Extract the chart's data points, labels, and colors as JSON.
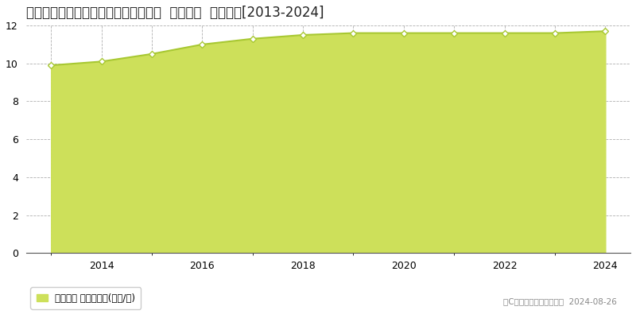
{
  "title": "福島県いわき市岩間町天神前２番６外  地価公示  地価推移[2013-2024]",
  "years": [
    2013,
    2014,
    2015,
    2016,
    2017,
    2018,
    2019,
    2020,
    2021,
    2022,
    2023,
    2024
  ],
  "values": [
    9.9,
    10.1,
    10.5,
    11.0,
    11.3,
    11.5,
    11.6,
    11.6,
    11.6,
    11.6,
    11.6,
    11.7
  ],
  "ylim": [
    0,
    12
  ],
  "yticks": [
    0,
    2,
    4,
    6,
    8,
    10,
    12
  ],
  "line_color": "#a8c832",
  "fill_color": "#cde05a",
  "fill_alpha": 1.0,
  "marker_color": "#ffffff",
  "marker_edge_color": "#a8c832",
  "grid_color": "#b0b0b0",
  "bg_color": "#ffffff",
  "plot_bg_color": "#ffffff",
  "legend_label": "地価公示 平均坪単価(万円/坪)",
  "legend_marker_color": "#cde05a",
  "copyright_text": "（C）土地価格ドットコム  2024-08-26",
  "title_fontsize": 12,
  "tick_fontsize": 9,
  "legend_fontsize": 8.5,
  "copyright_fontsize": 7.5,
  "xlim_left": 2012.5,
  "xlim_right": 2024.5
}
